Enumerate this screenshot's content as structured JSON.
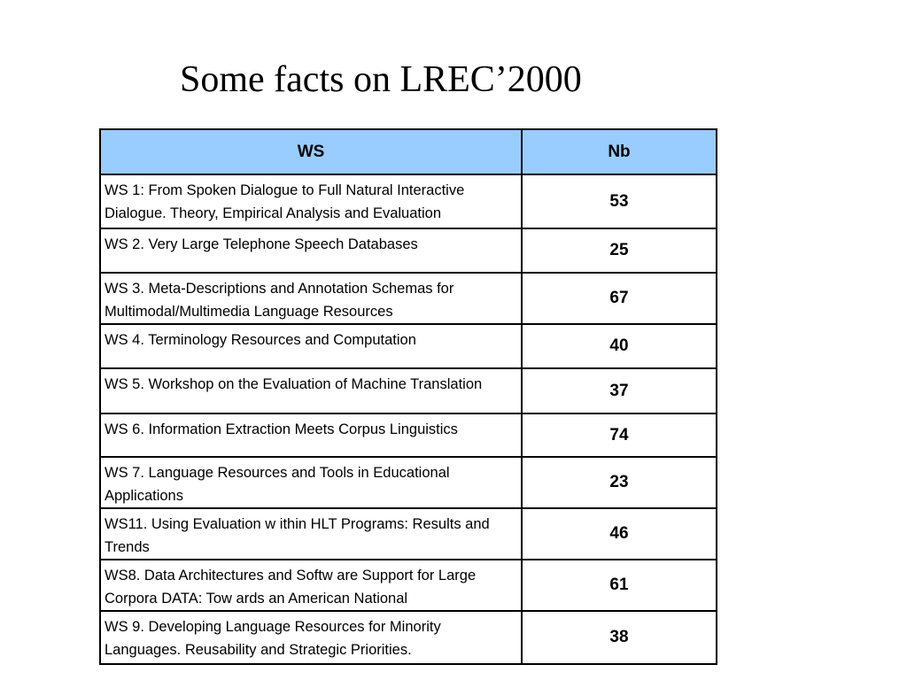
{
  "title": "Some facts on LREC’2000",
  "table": {
    "headers": [
      "WS",
      "Nb"
    ],
    "rows": [
      {
        "name": "WS 1:  From Spoken Dialogue to Full Natural Interactive Dialogue. Theory, Empirical Analysis and Evaluation",
        "nb": "53"
      },
      {
        "name": "WS 2. Very Large Telephone Speech Databases",
        "nb": "25"
      },
      {
        "name": "WS 3. Meta-Descriptions and Annotation Schemas for Multimodal/Multimedia Language Resources",
        "nb": "67"
      },
      {
        "name": "WS 4. Terminology Resources and Computation",
        "nb": "40"
      },
      {
        "name": "WS 5. Workshop on the Evaluation of Machine Translation",
        "nb": "37"
      },
      {
        "name": "WS 6. Information Extraction Meets Corpus Linguistics",
        "nb": "74"
      },
      {
        "name": "WS 7. Language Resources and Tools in Educational Applications",
        "nb": "23"
      },
      {
        "name": "WS11. Using Evaluation w ithin HLT Programs: Results and Trends",
        "nb": "46"
      },
      {
        "name": "WS8. Data Architectures and Softw are Support for Large Corpora DATA: Tow ards an American National",
        "nb": "61"
      },
      {
        "name": "WS 9. Developing Language Resources for Minority Languages. Reusability and Strategic Priorities.",
        "nb": "38"
      }
    ]
  },
  "colors": {
    "header_background": "#99ccff",
    "border": "#000000",
    "text": "#000000"
  }
}
